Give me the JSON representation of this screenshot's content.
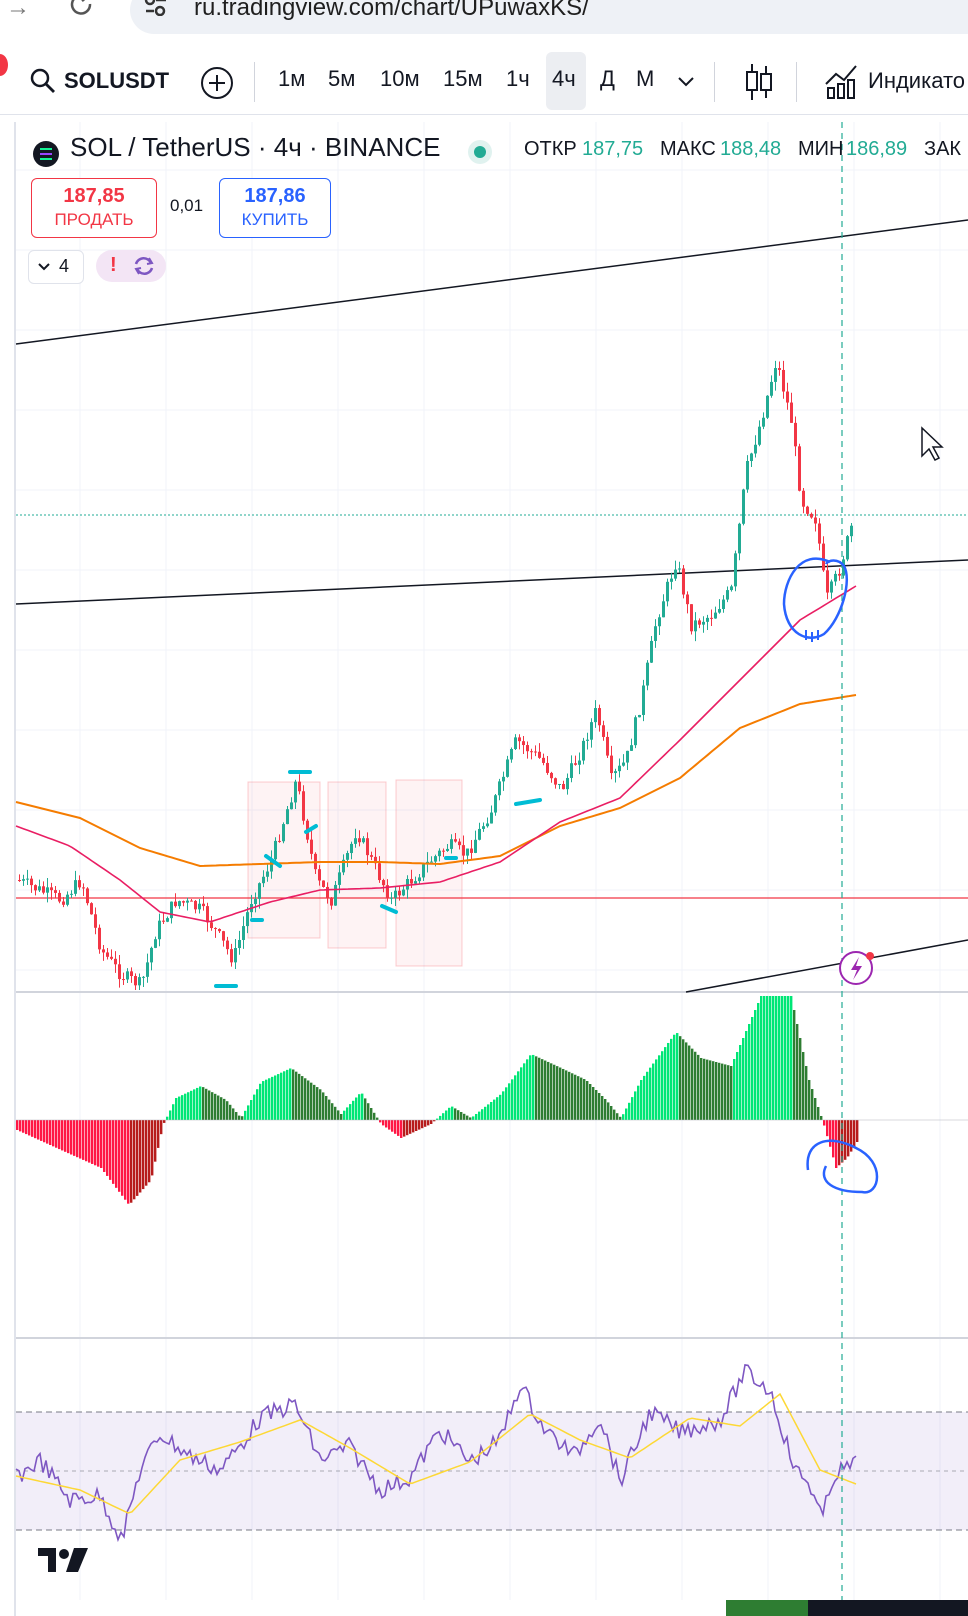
{
  "browser": {
    "url": "ru.tradingview.com/chart/UPuwaxKS/",
    "back_icon": "arrow-right-icon",
    "reload_icon": "reload-icon",
    "site_info_icon": "tune-icon"
  },
  "toolbar": {
    "symbol": "SOLUSDT",
    "timeframes": [
      "1м",
      "5м",
      "10м",
      "15м",
      "1ч",
      "4ч",
      "Д",
      "М"
    ],
    "active_timeframe": "4ч",
    "indicators_label": "Индикато"
  },
  "legend": {
    "title": "SOL / TetherUS · 4ч · BINANCE",
    "open_label": "ОТКР",
    "open_value": "187,75",
    "high_label": "МАКС",
    "high_value": "188,48",
    "low_label": "МИН",
    "low_value": "186,89",
    "close_label": "ЗАК"
  },
  "trade": {
    "sell_price": "187,85",
    "sell_label": "ПРОДАТЬ",
    "spread": "0,01",
    "buy_price": "187,86",
    "buy_label": "КУПИТЬ"
  },
  "indicators": {
    "collapsed_count": "4",
    "warning_glyph": "!"
  },
  "colors": {
    "up": "#22ab94",
    "down": "#f23645",
    "ema_fast": "#e91e63",
    "ema_slow": "#f57c00",
    "rsi": "#7e57c2",
    "rsi_signal": "#fdd835",
    "hist_up": "#00e676",
    "hist_down": "#ff1744",
    "annotation": "#2962ff",
    "marker": "#00bcd4"
  }
}
